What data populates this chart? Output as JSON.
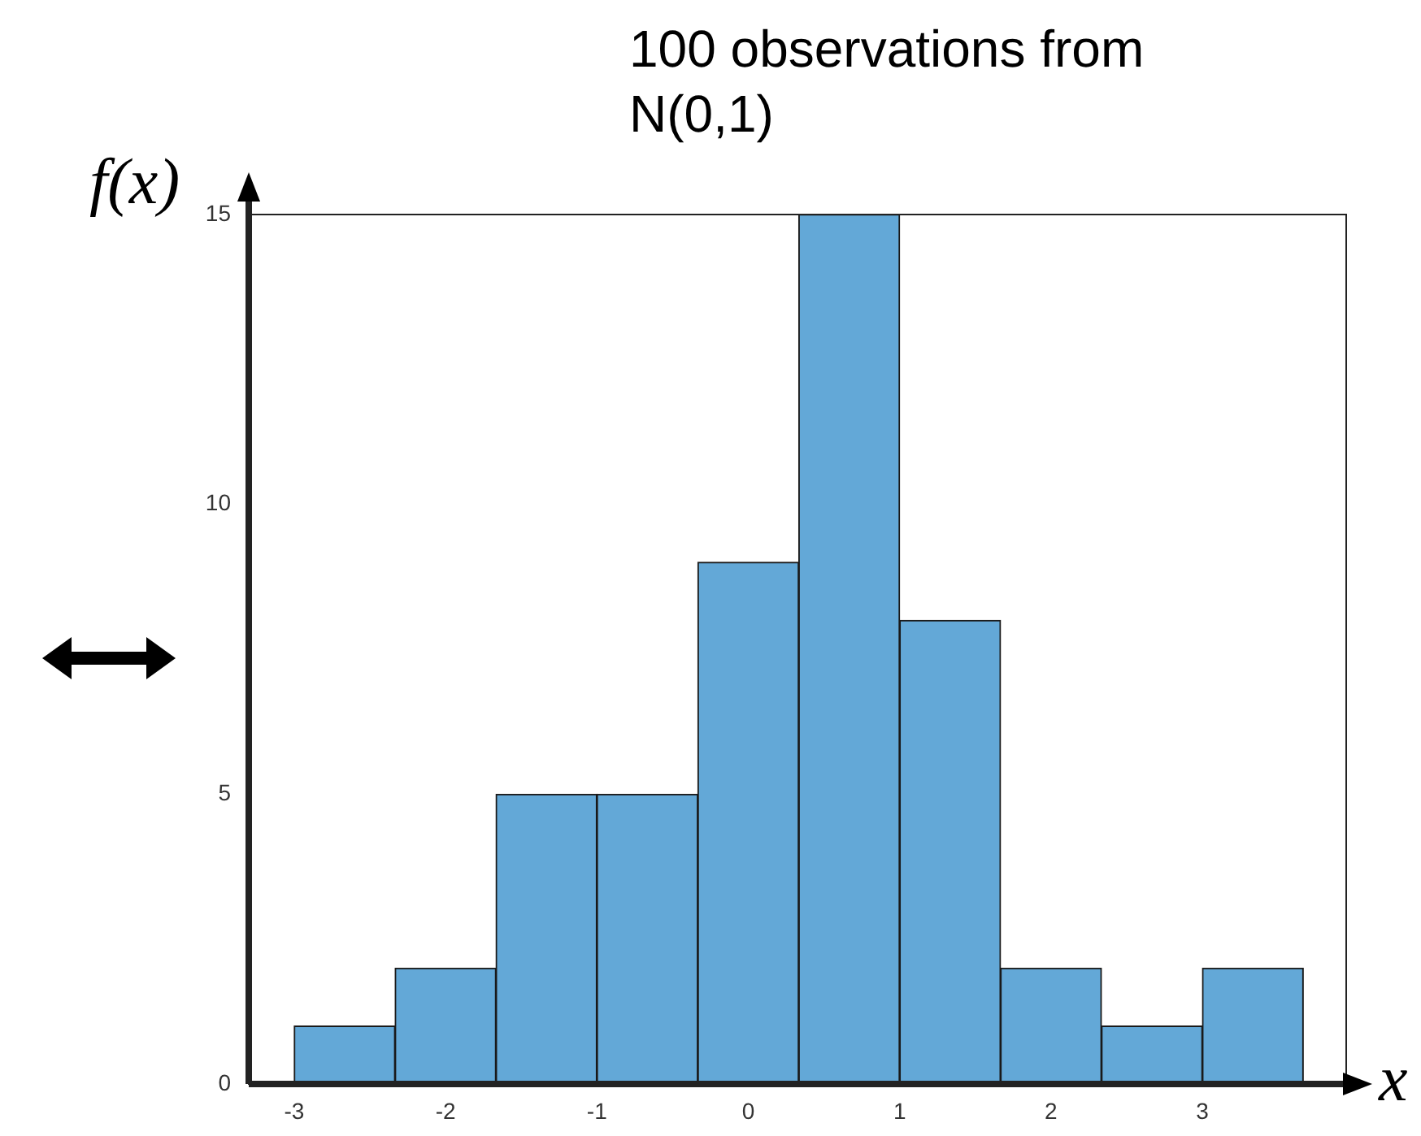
{
  "chart_data": {
    "type": "histogram",
    "title": "100 observations from N(0,1)",
    "xlabel": "x",
    "ylabel": "f(x)",
    "bins": [
      -3,
      -2.3333,
      -1.6667,
      -1,
      -0.3333,
      0.3333,
      1,
      1.6667,
      2.3333,
      3,
      3.6667
    ],
    "values": [
      1,
      2,
      5,
      5,
      9,
      15,
      8,
      2,
      1,
      2
    ],
    "color": "#63a8d7",
    "xlim": [
      -3.3,
      3.95
    ],
    "xticks": [
      -3,
      -2,
      -1,
      0,
      1,
      2,
      3
    ],
    "ylim": [
      0,
      15
    ],
    "yticks": [
      0,
      5,
      10,
      15
    ]
  }
}
